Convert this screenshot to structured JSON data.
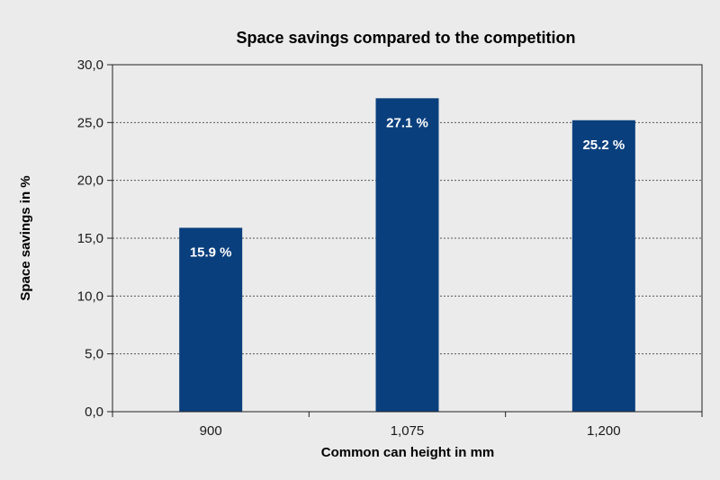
{
  "chart_data": {
    "type": "bar",
    "title": "Space savings compared to the competition",
    "xlabel": "Common can height in mm",
    "ylabel": "Space savings in %",
    "categories": [
      "900",
      "1,075",
      "1,200"
    ],
    "values": [
      15.9,
      27.1,
      25.2
    ],
    "data_labels": [
      "15.9 %",
      "27.1 %",
      "25.2 %"
    ],
    "ylim": [
      0,
      30
    ],
    "yticks": [
      0,
      5,
      10,
      15,
      20,
      25,
      30
    ],
    "ytick_labels": [
      "0,0",
      "5,0",
      "10,0",
      "15,0",
      "20,0",
      "25,0",
      "30,0"
    ],
    "grid": true,
    "bar_color": "#0a3f7d",
    "background": "#ebebeb"
  }
}
